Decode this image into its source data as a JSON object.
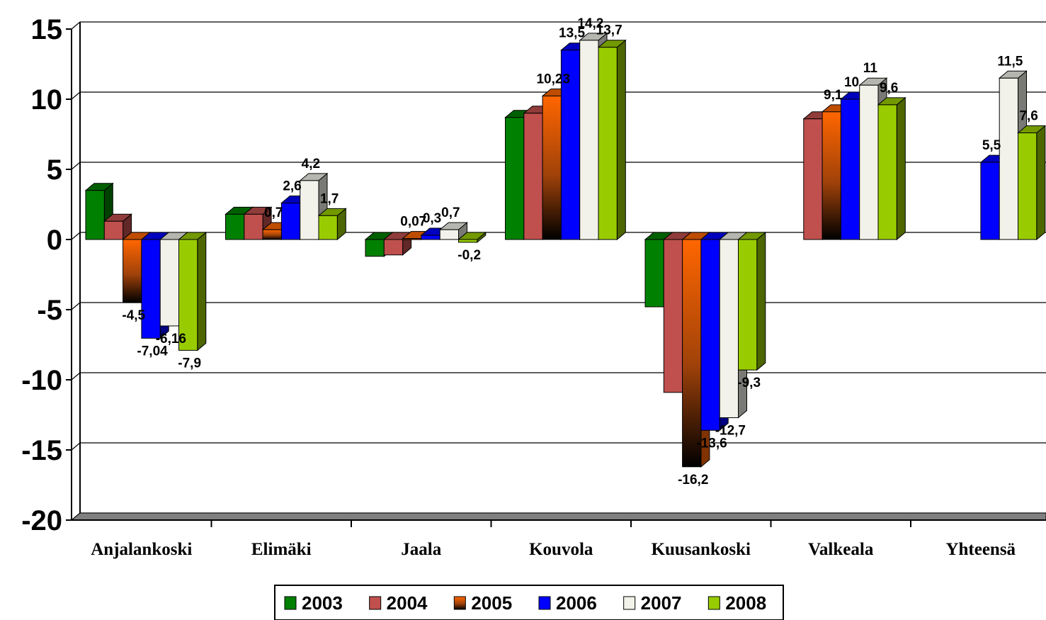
{
  "chart_data": {
    "type": "bar",
    "title": "",
    "xlabel": "",
    "ylabel": "",
    "ylim": [
      -20,
      15
    ],
    "yticks": [
      "15",
      "10",
      "5",
      "0",
      "-5",
      "-10",
      "-15",
      "-20"
    ],
    "grid": true,
    "legend_position": "bottom",
    "categories": [
      "Anjalankoski",
      "Elimäki",
      "Jaala",
      "Kouvola",
      "Kuusankoski",
      "Valkeala",
      "Yhteensä"
    ],
    "series": [
      {
        "name": "2003",
        "color": "#008000",
        "values": [
          3.5,
          1.8,
          -1.2,
          8.7,
          -4.8,
          null,
          null
        ],
        "labels": [
          "",
          "",
          "",
          "",
          "",
          "",
          ""
        ]
      },
      {
        "name": "2004",
        "color": "#C0504D",
        "values": [
          1.3,
          1.8,
          -1.1,
          9.0,
          -10.9,
          8.6,
          null
        ],
        "labels": [
          "",
          "",
          "",
          "",
          "",
          "",
          ""
        ]
      },
      {
        "name": "2005",
        "color": "#FF6600",
        "values": [
          -4.5,
          0.7,
          0.07,
          10.23,
          -16.2,
          9.1,
          null
        ],
        "labels": [
          "-4,5",
          "0,7",
          "0,07",
          "10,23",
          "-16,2",
          "9,1",
          ""
        ]
      },
      {
        "name": "2006",
        "color": "#0000FF",
        "values": [
          -7.04,
          2.6,
          0.3,
          13.5,
          -13.6,
          10,
          5.5
        ],
        "labels": [
          "-7,04",
          "2,6",
          "0,3",
          "13,5",
          "-13,6",
          "10",
          "5,5"
        ]
      },
      {
        "name": "2007",
        "color": "#F2F2EA",
        "values": [
          -6.16,
          4.2,
          0.7,
          14.2,
          -12.7,
          11,
          11.5
        ],
        "labels": [
          "-6,16",
          "4,2",
          "0,7",
          "14,2",
          "-12,7",
          "11",
          "11,5"
        ]
      },
      {
        "name": "2008",
        "color": "#99CC00",
        "values": [
          -7.9,
          1.7,
          -0.2,
          13.7,
          -9.3,
          9.6,
          7.6
        ],
        "labels": [
          "-7,9",
          "1,7",
          "-0,2",
          "13,7",
          "-9,3",
          "9,6",
          "7,6"
        ]
      }
    ]
  }
}
